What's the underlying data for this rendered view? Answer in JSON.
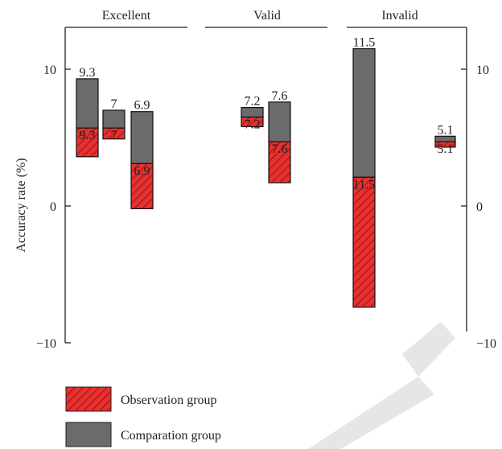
{
  "chart_data": {
    "type": "bar",
    "subtype": "floating-range",
    "ylabel": "Accuracy rate (%)",
    "ylim": [
      -10,
      13
    ],
    "yticks": [
      -10,
      0,
      10
    ],
    "panels": [
      {
        "title": "Excellent",
        "bars": [
          {
            "label": "9.3",
            "comparation": [
              5.7,
              9.3
            ],
            "observation": [
              3.6,
              5.7
            ]
          },
          {
            "label": "7",
            "comparation": [
              5.7,
              7.0
            ],
            "observation": [
              4.9,
              5.7
            ]
          },
          {
            "label": "6.9",
            "comparation": [
              3.1,
              6.9
            ],
            "observation": [
              -0.2,
              3.1
            ]
          }
        ]
      },
      {
        "title": "Valid",
        "bars": [
          {
            "label": "7.2",
            "comparation": [
              6.5,
              7.2
            ],
            "observation": [
              5.8,
              6.5
            ]
          },
          {
            "label": "7.6",
            "comparation": [
              4.7,
              7.6
            ],
            "observation": [
              1.7,
              4.7
            ]
          }
        ]
      },
      {
        "title": "Invalid",
        "bars": [
          {
            "label": "11.5",
            "comparation": [
              2.1,
              11.5
            ],
            "observation": [
              -7.4,
              2.1
            ]
          },
          {
            "label": "5.1",
            "comparation": [
              4.7,
              5.1
            ],
            "observation": [
              4.3,
              4.7
            ]
          }
        ]
      }
    ],
    "legend": {
      "position": "bottom-left",
      "items": [
        {
          "name": "Observation group",
          "color": "#e8302e",
          "pattern": "hatched"
        },
        {
          "name": "Comparation group",
          "color": "#6b6b6b",
          "pattern": "solid"
        }
      ]
    },
    "grid": false
  }
}
